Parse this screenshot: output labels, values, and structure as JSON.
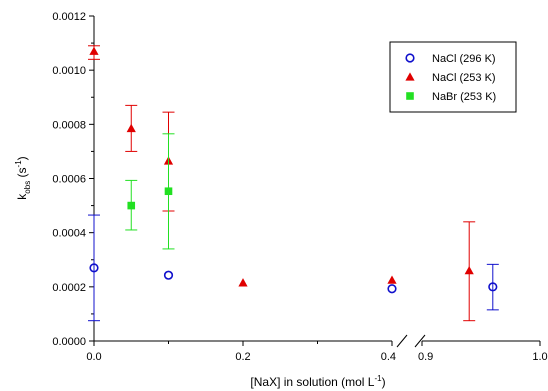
{
  "chart_data": {
    "type": "scatter",
    "xlabel": "[NaX] in solution (mol L",
    "xlabel_sup": "-1",
    "xlabel_tail": ")",
    "ylabel_main": "k",
    "ylabel_sub": "obs",
    "ylabel_unit": " (s",
    "ylabel_sup": "-1",
    "ylabel_tail": ")",
    "y_ticks": [
      "0.0000",
      "0.0002",
      "0.0004",
      "0.0006",
      "0.0008",
      "0.0010",
      "0.0012"
    ],
    "y_tick_values": [
      0,
      0.0002,
      0.0004,
      0.0006,
      0.0008,
      0.001,
      0.0012
    ],
    "ylim": [
      0,
      0.0012
    ],
    "x_axis_segments": [
      {
        "range": [
          0,
          0.4
        ],
        "ticks": [
          "0.0",
          "0.2",
          "0.4"
        ],
        "tick_values": [
          0,
          0.2,
          0.4
        ]
      },
      {
        "range": [
          0.9,
          1.0
        ],
        "ticks": [
          "0.9",
          "1.0"
        ],
        "tick_values": [
          0.9,
          1.0
        ]
      }
    ],
    "axis_break": "between 0.4 and 0.9",
    "legend_position": "top-right",
    "grid": false,
    "series": [
      {
        "name": "NaCl (296 K)",
        "marker": "open-circle",
        "color": "#1010cc",
        "points": [
          {
            "x": 0.0,
            "y": 0.00027,
            "err_low": 7.5e-05,
            "err_high": 0.000465
          },
          {
            "x": 0.1,
            "y": 0.000243
          },
          {
            "x": 0.4,
            "y": 0.000193
          },
          {
            "x": 0.96,
            "y": 0.0002,
            "err_low": 0.000115,
            "err_high": 0.000283
          }
        ]
      },
      {
        "name": "NaCl (253 K)",
        "marker": "filled-triangle",
        "color": "#e00000",
        "points": [
          {
            "x": 0.0,
            "y": 0.00107,
            "err_low": 0.00104,
            "err_high": 0.00109
          },
          {
            "x": 0.05,
            "y": 0.000785,
            "err_low": 0.0007,
            "err_high": 0.00087
          },
          {
            "x": 0.1,
            "y": 0.000665,
            "err_low": 0.00048,
            "err_high": 0.000845
          },
          {
            "x": 0.2,
            "y": 0.000215
          },
          {
            "x": 0.4,
            "y": 0.000225
          },
          {
            "x": 0.94,
            "y": 0.00026,
            "err_low": 7.5e-05,
            "err_high": 0.00044
          }
        ]
      },
      {
        "name": "NaBr (253 K)",
        "marker": "filled-square",
        "color": "#22e022",
        "points": [
          {
            "x": 0.05,
            "y": 0.0005,
            "err_low": 0.00041,
            "err_high": 0.000593
          },
          {
            "x": 0.1,
            "y": 0.000553,
            "err_low": 0.00034,
            "err_high": 0.000765
          }
        ]
      }
    ]
  }
}
